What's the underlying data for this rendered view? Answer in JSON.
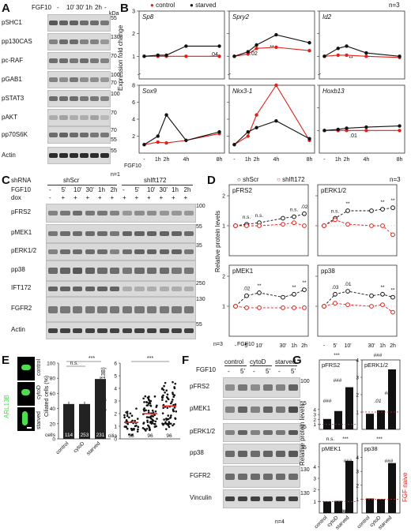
{
  "panels": {
    "A": {
      "letter": "A",
      "header_label": "FGF10",
      "times": [
        "-",
        "10'",
        "30'",
        "1h",
        "2h",
        "-"
      ],
      "kda_label": "kDa",
      "blots": [
        {
          "name": "pSHC1",
          "marker": "55"
        },
        {
          "name": "pp130CAS",
          "marker": "130"
        },
        {
          "name": "pc-RAF",
          "marker": "70"
        },
        {
          "name": "pGAB1",
          "marker": "100"
        },
        {
          "name": "pSTAT3",
          "marker": "100"
        },
        {
          "name": "pAKT",
          "marker": "70"
        },
        {
          "name": "pp70S6K",
          "marker": "70"
        },
        {
          "name": "Actin",
          "marker": "55"
        }
      ],
      "extra_markers": [
        "100",
        "70",
        "55"
      ],
      "n_label": "n=1"
    },
    "B": {
      "letter": "B",
      "legend": {
        "control": "control",
        "starved": "starved"
      },
      "n_label": "n=3",
      "ylabel": "Expression fold change",
      "x_row_label": "FGF10",
      "x_ticks": [
        "-",
        "1h",
        "2h",
        "4h",
        "8h"
      ],
      "genes": [
        "Sp8",
        "Spry2",
        "Id2",
        "Sox9",
        "Nkx3-1",
        "Hoxb13"
      ],
      "annotations": [
        ".04",
        ".02",
        "**",
        "**",
        ".01"
      ]
    },
    "C": {
      "letter": "C",
      "shrna_label": "shRNA",
      "groups": [
        "shScr",
        "shIft172"
      ],
      "fgf_label": "FGF10",
      "dox_label": "dox",
      "times": [
        "-",
        "5'",
        "10'",
        "30'",
        "1h",
        "2h",
        "-",
        "5'",
        "10'",
        "30'",
        "1h",
        "2h"
      ],
      "dox": [
        "-",
        "+",
        "+",
        "+",
        "+",
        "+",
        "+",
        "+",
        "+",
        "+",
        "+",
        "+"
      ],
      "blots": [
        {
          "name": "pFRS2",
          "marker": "100"
        },
        {
          "name": "pMEK1",
          "marker": "55"
        },
        {
          "name": "pERK1/2",
          "marker": "35"
        },
        {
          "name": "pp38",
          "marker": ""
        },
        {
          "name": "IFT172",
          "marker": "250"
        },
        {
          "name": "FGFR2",
          "marker": "130"
        },
        {
          "name": "Actin",
          "marker": "55"
        }
      ]
    },
    "D": {
      "letter": "D",
      "legend": {
        "shScr": "shScr",
        "shIft172": "shIft172"
      },
      "n_label": "n=3",
      "ylabel": "Relative protein levels",
      "x_row_label": "FGF10",
      "x_ticks": [
        "-",
        "5'",
        "10'",
        "30'",
        "1h",
        "2h"
      ],
      "proteins": [
        "pFRS2",
        "pERK1/2",
        "pMEK1",
        "pp38"
      ],
      "n_bottom": "n=3",
      "annotations_pFRS2": [
        "n.s.",
        "n.s.",
        "n.s.",
        ".02"
      ],
      "annotations_pERK": [
        "n.s.",
        "**",
        "**",
        "**"
      ],
      "annotations_pMEK1": [
        ".02",
        "**",
        "**",
        "**"
      ],
      "annotations_pp38": [
        ".03",
        ".01",
        "**",
        "**"
      ]
    },
    "E": {
      "letter": "E",
      "stain_label": "ARL13B",
      "row_labels": [
        "control",
        "cytoD",
        "starved"
      ],
      "bar_ylabel": "Ciliated cells (%)",
      "bar_yticks": [
        "0",
        "20",
        "40",
        "60",
        "80",
        "100"
      ],
      "bar_cells_label": "cells",
      "bar_counts": [
        "114",
        "253",
        "231"
      ],
      "bar_categories": [
        "control",
        "cytoD",
        "starved"
      ],
      "bar_sig": [
        "n.s.",
        "***"
      ],
      "scatter_ylabel": "Cilia length (µm; ARL13B)",
      "scatter_yticks": [
        "0",
        "1",
        "2",
        "3",
        "4",
        "5",
        "6"
      ],
      "scatter_cilia_label": "cilia",
      "scatter_counts": [
        "55",
        "96",
        "96"
      ],
      "scatter_sig": "***"
    },
    "F": {
      "letter": "F",
      "fgf_label": "FGF10",
      "groups": [
        "control",
        "cytoD",
        "starved"
      ],
      "times": [
        "-",
        "5'",
        "-",
        "5'",
        "-",
        "5'"
      ],
      "blots": [
        {
          "name": "pFRS2",
          "marker": "100"
        },
        {
          "name": "pMEK1",
          "marker": "55"
        },
        {
          "name": "pERK1/2",
          "marker": "55"
        },
        {
          "name": "pp38",
          "marker": "35"
        },
        {
          "name": "FGFR2",
          "marker": "130"
        },
        {
          "name": "Vinculin",
          "marker": "130"
        }
      ],
      "n_label": "n=4"
    },
    "G": {
      "letter": "G",
      "ylabel": "Relative protein levels",
      "categories": [
        "control",
        "cytoD",
        "starved"
      ],
      "proteins": [
        "pFRS2",
        "pERK1/2",
        "pMEK1",
        "pp38"
      ],
      "naive_label": "FGF naive",
      "sig_labels": [
        "***",
        "###",
        "###",
        ".01",
        "###",
        "###",
        "n.s.",
        "***",
        "###",
        ".01",
        "###",
        "***",
        "##",
        "###"
      ]
    }
  },
  "chart_data": [
    {
      "type": "line",
      "title": "Sp8",
      "x": [
        "-",
        "1h",
        "2h",
        "4h",
        "8h"
      ],
      "series": [
        {
          "name": "control",
          "values": [
            1.0,
            1.0,
            1.0,
            1.0,
            1.0
          ]
        },
        {
          "name": "starved",
          "values": [
            1.0,
            1.05,
            1.05,
            1.45,
            1.45
          ]
        }
      ],
      "ylim": [
        0,
        3
      ]
    },
    {
      "type": "line",
      "title": "Spry2",
      "x": [
        "-",
        "1h",
        "2h",
        "4h",
        "8h"
      ],
      "series": [
        {
          "name": "control",
          "values": [
            1.0,
            1.1,
            1.35,
            1.4,
            1.25
          ]
        },
        {
          "name": "starved",
          "values": [
            1.0,
            1.2,
            1.5,
            1.95,
            1.6
          ]
        }
      ],
      "ylim": [
        0,
        3
      ]
    },
    {
      "type": "line",
      "title": "Id2",
      "x": [
        "-",
        "1h",
        "2h",
        "4h",
        "8h"
      ],
      "series": [
        {
          "name": "control",
          "values": [
            1.0,
            1.05,
            1.05,
            1.0,
            0.95
          ]
        },
        {
          "name": "starved",
          "values": [
            1.0,
            1.35,
            1.45,
            1.15,
            1.0
          ]
        }
      ],
      "ylim": [
        0,
        3
      ]
    },
    {
      "type": "line",
      "title": "Sox9",
      "x": [
        "-",
        "1h",
        "2h",
        "4h",
        "8h"
      ],
      "series": [
        {
          "name": "control",
          "values": [
            1.0,
            1.3,
            1.2,
            1.5,
            2.3
          ]
        },
        {
          "name": "starved",
          "values": [
            1.0,
            2.0,
            4.5,
            1.5,
            2.5
          ]
        }
      ],
      "ylim": [
        0,
        8
      ]
    },
    {
      "type": "line",
      "title": "Nkx3-1",
      "x": [
        "-",
        "1h",
        "2h",
        "4h",
        "8h"
      ],
      "series": [
        {
          "name": "control",
          "values": [
            1.0,
            2.0,
            4.5,
            8.0,
            1.5
          ]
        },
        {
          "name": "starved",
          "values": [
            1.0,
            2.5,
            3.0,
            3.8,
            1.7
          ]
        }
      ],
      "ylim": [
        0,
        8
      ]
    },
    {
      "type": "line",
      "title": "Hoxb13",
      "x": [
        "-",
        "1h",
        "2h",
        "4h",
        "8h"
      ],
      "series": [
        {
          "name": "control",
          "values": [
            1.0,
            1.0,
            1.0,
            1.0,
            1.0
          ]
        },
        {
          "name": "starved",
          "values": [
            1.0,
            1.05,
            1.1,
            1.15,
            1.2
          ]
        }
      ],
      "ylim": [
        0,
        3
      ]
    },
    {
      "type": "line",
      "title": "pFRS2",
      "x": [
        "-",
        "5'",
        "10'",
        "30'",
        "1h",
        "2h"
      ],
      "series": [
        {
          "name": "shScr",
          "values": [
            1.0,
            1.05,
            1.1,
            1.25,
            1.3,
            1.4
          ]
        },
        {
          "name": "shIft172",
          "values": [
            1.0,
            1.0,
            1.0,
            1.05,
            1.1,
            1.0
          ]
        }
      ],
      "ylim": [
        0,
        2
      ]
    },
    {
      "type": "line",
      "title": "pERK1/2",
      "x": [
        "-",
        "5'",
        "10'",
        "30'",
        "1h",
        "2h"
      ],
      "series": [
        {
          "name": "shScr",
          "values": [
            1.0,
            1.25,
            1.5,
            1.5,
            1.55,
            1.6
          ]
        },
        {
          "name": "shIft172",
          "values": [
            1.0,
            1.2,
            1.05,
            1.0,
            1.0,
            0.7
          ]
        }
      ],
      "ylim": [
        0,
        2
      ]
    },
    {
      "type": "line",
      "title": "pMEK1",
      "x": [
        "-",
        "5'",
        "10'",
        "30'",
        "1h",
        "2h"
      ],
      "series": [
        {
          "name": "shScr",
          "values": [
            1.0,
            1.35,
            1.45,
            1.3,
            1.4,
            1.55
          ]
        },
        {
          "name": "shIft172",
          "values": [
            1.0,
            0.95,
            0.95,
            0.95,
            0.95,
            0.95
          ]
        }
      ],
      "ylim": [
        0,
        2
      ]
    },
    {
      "type": "line",
      "title": "pp38",
      "x": [
        "-",
        "5'",
        "10'",
        "30'",
        "1h",
        "2h"
      ],
      "series": [
        {
          "name": "shScr",
          "values": [
            1.0,
            1.4,
            1.5,
            1.35,
            1.4,
            1.3
          ]
        },
        {
          "name": "shIft172",
          "values": [
            1.0,
            1.1,
            1.05,
            1.0,
            1.05,
            0.8
          ]
        }
      ],
      "ylim": [
        0,
        2
      ]
    },
    {
      "type": "bar",
      "title": "Ciliated cells (%)",
      "categories": [
        "control",
        "cytoD",
        "starved"
      ],
      "values": [
        46,
        46,
        79
      ],
      "ylim": [
        0,
        100
      ]
    },
    {
      "type": "scatter",
      "title": "Cilia length (µm; ARL13B)",
      "categories": [
        "control",
        "cytoD",
        "starved"
      ],
      "medians": [
        1.3,
        2.0,
        2.6
      ],
      "ylim": [
        0,
        6
      ]
    },
    {
      "type": "bar",
      "title": "pFRS2",
      "categories": [
        "control",
        "cytoD",
        "starved"
      ],
      "values": [
        2.1,
        3.7,
        8.5
      ],
      "ylim": [
        0,
        14
      ]
    },
    {
      "type": "bar",
      "title": "pERK1/2",
      "categories": [
        "control",
        "cytoD",
        "starved"
      ],
      "values": [
        0.9,
        1.1,
        3.6
      ],
      "ylim": [
        0,
        4
      ]
    },
    {
      "type": "bar",
      "title": "pMEK1",
      "categories": [
        "control",
        "cytoD",
        "starved"
      ],
      "values": [
        1.0,
        1.05,
        4.5
      ],
      "ylim": [
        0,
        6
      ]
    },
    {
      "type": "bar",
      "title": "pp38",
      "categories": [
        "control",
        "cytoD",
        "starved"
      ],
      "values": [
        1.05,
        1.0,
        3.6
      ],
      "ylim": [
        0,
        5
      ]
    }
  ]
}
